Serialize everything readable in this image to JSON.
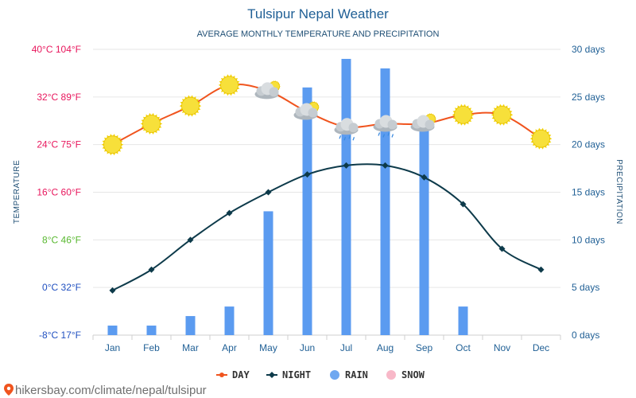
{
  "chart_data": {
    "type": "line+bar",
    "title": "Tulsipur Nepal Weather",
    "subtitle": "AVERAGE MONTHLY TEMPERATURE AND PRECIPITATION",
    "categories": [
      "Jan",
      "Feb",
      "Mar",
      "Apr",
      "May",
      "Jun",
      "Jul",
      "Aug",
      "Sep",
      "Oct",
      "Nov",
      "Dec"
    ],
    "left_axis": {
      "label": "TEMPERATURE",
      "range_c": [
        -8,
        40
      ],
      "ticks": [
        {
          "value": 40,
          "label": "40°C 104°F",
          "color": "#e8175d"
        },
        {
          "value": 32,
          "label": "32°C 89°F",
          "color": "#e8175d"
        },
        {
          "value": 24,
          "label": "24°C 75°F",
          "color": "#e8175d"
        },
        {
          "value": 16,
          "label": "16°C 60°F",
          "color": "#e8175d"
        },
        {
          "value": 8,
          "label": "8°C 46°F",
          "color": "#58b82f"
        },
        {
          "value": 0,
          "label": "0°C 32°F",
          "color": "#2050c0"
        },
        {
          "value": -8,
          "label": "-8°C 17°F",
          "color": "#2050c0"
        }
      ]
    },
    "right_axis": {
      "label": "PRECIPITATION",
      "range_days": [
        0,
        30
      ],
      "ticks": [
        {
          "value": 30,
          "label": "30 days"
        },
        {
          "value": 25,
          "label": "25 days"
        },
        {
          "value": 20,
          "label": "20 days"
        },
        {
          "value": 15,
          "label": "15 days"
        },
        {
          "value": 10,
          "label": "10 days"
        },
        {
          "value": 5,
          "label": "5 days"
        },
        {
          "value": 0,
          "label": "0 days"
        }
      ]
    },
    "series": [
      {
        "name": "DAY",
        "unit": "°C",
        "color": "#f0541e",
        "values": [
          24,
          27.5,
          30.5,
          34,
          33,
          29.5,
          27,
          27.5,
          27.5,
          29,
          29,
          25
        ]
      },
      {
        "name": "NIGHT",
        "unit": "°C",
        "color": "#0d3a4a",
        "values": [
          -0.5,
          3,
          8,
          12.5,
          16,
          19,
          20.5,
          20.5,
          18.5,
          14,
          6.5,
          3
        ]
      },
      {
        "name": "RAIN",
        "unit": "days",
        "color": "#5b9bf0",
        "values": [
          1,
          1,
          2,
          3,
          13,
          26,
          29,
          28,
          22,
          3,
          0,
          0
        ]
      }
    ],
    "weather_icons": [
      "sun",
      "sun",
      "sun",
      "sun",
      "sun-cloud",
      "sun-cloud",
      "rain-cloud",
      "rain-cloud",
      "sun-cloud",
      "sun",
      "sun",
      "sun"
    ],
    "legend": [
      {
        "label": "DAY",
        "color": "#f0541e",
        "marker": "line-dot"
      },
      {
        "label": "NIGHT",
        "color": "#0d3a4a",
        "marker": "line-diamond"
      },
      {
        "label": "RAIN",
        "color": "#6fa8f0",
        "marker": "circle"
      },
      {
        "label": "SNOW",
        "color": "#f8b8c8",
        "marker": "circle"
      }
    ],
    "grid": true,
    "legend_position": "bottom-center"
  },
  "footer": {
    "text": "hikersbay.com/climate/nepal/tulsipur",
    "pin_color": "#f0541e"
  }
}
